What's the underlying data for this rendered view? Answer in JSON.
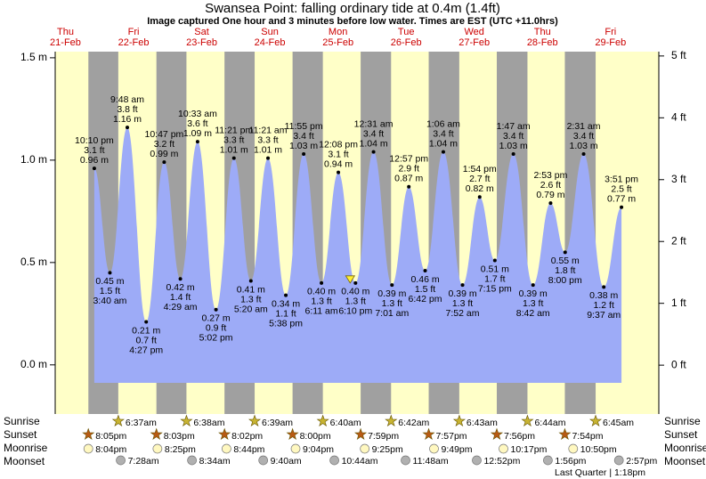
{
  "chart_data": {
    "type": "tide",
    "title": "Swansea Point: falling  ordinary tide at 0.4m (1.4ft)",
    "subtitle": "Image captured One hour and 3 minutes before low water. Times are EST (UTC +11.0hrs)",
    "days": [
      {
        "name": "Thu",
        "date": "21-Feb"
      },
      {
        "name": "Fri",
        "date": "22-Feb"
      },
      {
        "name": "Sat",
        "date": "23-Feb"
      },
      {
        "name": "Sun",
        "date": "24-Feb"
      },
      {
        "name": "Mon",
        "date": "25-Feb"
      },
      {
        "name": "Tue",
        "date": "26-Feb"
      },
      {
        "name": "Wed",
        "date": "27-Feb"
      },
      {
        "name": "Thu",
        "date": "28-Feb"
      },
      {
        "name": "Fri",
        "date": "29-Feb"
      }
    ],
    "xlim": [
      8.4,
      221
    ],
    "ylim": [
      -0.24,
      1.53
    ],
    "yticks": [
      {
        "value": 0,
        "label": "0.0 m"
      },
      {
        "value": 0.5,
        "label": "0.5 m"
      },
      {
        "value": 1,
        "label": "1.0 m"
      },
      {
        "value": 1.5,
        "label": "1.5 m"
      }
    ],
    "y2lim": [
      -0.79,
      5.07
    ],
    "y2ticks": [
      {
        "value": 0,
        "label": "0 ft"
      },
      {
        "value": 1,
        "label": "1 ft"
      },
      {
        "value": 2,
        "label": "2 ft"
      },
      {
        "value": 3,
        "label": "3 ft"
      },
      {
        "value": 4,
        "label": "4 ft"
      },
      {
        "value": 5,
        "label": "5 ft"
      }
    ],
    "colors": {
      "day": "#ffffc8",
      "night": "#a0a0a0",
      "tide": "#9dabf7"
    },
    "tide": {
      "x": [
        22.17,
        27.67,
        33.8,
        40.45,
        46.78,
        52.48,
        58.55,
        65.03,
        71.35,
        77.33,
        83.35,
        89.63,
        95.92,
        102.18,
        108.13,
        114.17,
        120.52,
        127.02,
        132.95,
        138.7,
        145.1,
        151.87,
        157.9,
        163.25,
        169.78,
        176.7,
        182.88,
        188.0,
        194.52,
        201.62,
        207.85
      ],
      "values": [
        0.96,
        0.45,
        1.16,
        0.21,
        0.99,
        0.42,
        1.09,
        0.27,
        1.01,
        0.41,
        1.01,
        0.34,
        1.03,
        0.4,
        0.94,
        0.4,
        1.04,
        0.39,
        0.87,
        0.46,
        1.04,
        0.39,
        0.82,
        0.51,
        1.03,
        0.39,
        0.79,
        0.55,
        1.03,
        0.38,
        0.77
      ],
      "value_labels": [
        "0.96 m",
        "0.45 m",
        "1.16 m",
        "0.21 m",
        "0.99 m",
        "0.42 m",
        "1.09 m",
        "0.27 m",
        "1.01 m",
        "0.41 m",
        "1.01 m",
        "0.34 m",
        "1.03 m",
        "0.40 m",
        "0.94 m",
        "0.40 m",
        "1.04 m",
        "0.39 m",
        "0.87 m",
        "0.46 m",
        "1.04 m",
        "0.39 m",
        "0.82 m",
        "0.51 m",
        "1.03 m",
        "0.39 m",
        "0.79 m",
        "0.55 m",
        "1.03 m",
        "0.38 m",
        "0.77 m"
      ],
      "ft_labels": [
        "3.1 ft",
        "1.5 ft",
        "3.8 ft",
        "0.7 ft",
        "3.2 ft",
        "1.4 ft",
        "3.6 ft",
        "0.9 ft",
        "3.3 ft",
        "1.3 ft",
        "3.3 ft",
        "1.1 ft",
        "3.4 ft",
        "1.3 ft",
        "3.1 ft",
        "1.3 ft",
        "3.4 ft",
        "1.3 ft",
        "2.9 ft",
        "1.5 ft",
        "3.4 ft",
        "1.3 ft",
        "2.7 ft",
        "1.7 ft",
        "3.4 ft",
        "1.3 ft",
        "2.6 ft",
        "1.8 ft",
        "3.4 ft",
        "1.2 ft",
        "2.5 ft"
      ],
      "time_labels": [
        "10:10 pm",
        "3:40 am",
        "9:48 am",
        "4:27 pm",
        "10:47 pm",
        "4:29 am",
        "10:33 am",
        "5:02 pm",
        "11:21 pm",
        "5:20 am",
        "11:21 am",
        "5:38 pm",
        "11:55 pm",
        "6:11 am",
        "12:08 pm",
        "6:10 pm",
        "12:31 am",
        "7:01 am",
        "12:57 pm",
        "6:42 pm",
        "1:06 am",
        "7:52 am",
        "1:54 pm",
        "7:15 pm",
        "1:47 am",
        "8:42 am",
        "2:53 pm",
        "8:00 pm",
        "2:31 am",
        "9:37 am",
        "3:51 pm"
      ]
    },
    "sunrise": {
      "label": "Sunrise",
      "x": [
        30.62,
        54.63,
        78.65,
        102.67,
        126.7,
        150.72,
        174.73,
        198.75
      ],
      "times": [
        "6:37am",
        "6:38am",
        "6:39am",
        "6:40am",
        "6:42am",
        "6:43am",
        "6:44am",
        "6:45am"
      ]
    },
    "sunset": {
      "label": "Sunset",
      "x": [
        20.08,
        44.05,
        68.03,
        92.0,
        115.98,
        139.95,
        163.93,
        187.9
      ],
      "times": [
        "8:05pm",
        "8:03pm",
        "8:02pm",
        "8:00pm",
        "7:59pm",
        "7:57pm",
        "7:56pm",
        "7:54pm"
      ]
    },
    "moonrise": {
      "label": "Moonrise",
      "x": [
        20.07,
        44.42,
        68.73,
        93.07,
        117.42,
        141.82,
        166.28,
        190.83
      ],
      "times": [
        "8:04pm",
        "8:25pm",
        "8:44pm",
        "9:04pm",
        "9:25pm",
        "9:49pm",
        "10:17pm",
        "10:50pm"
      ]
    },
    "moonset": {
      "label": "Moonset",
      "x": [
        31.47,
        56.57,
        81.67,
        106.73,
        131.8,
        156.87,
        181.93,
        206.95
      ],
      "times": [
        "7:28am",
        "8:34am",
        "9:40am",
        "10:44am",
        "11:48am",
        "12:52pm",
        "1:56pm",
        "2:57pm"
      ]
    },
    "moon_phase": "Last Quarter | 1:18pm"
  }
}
